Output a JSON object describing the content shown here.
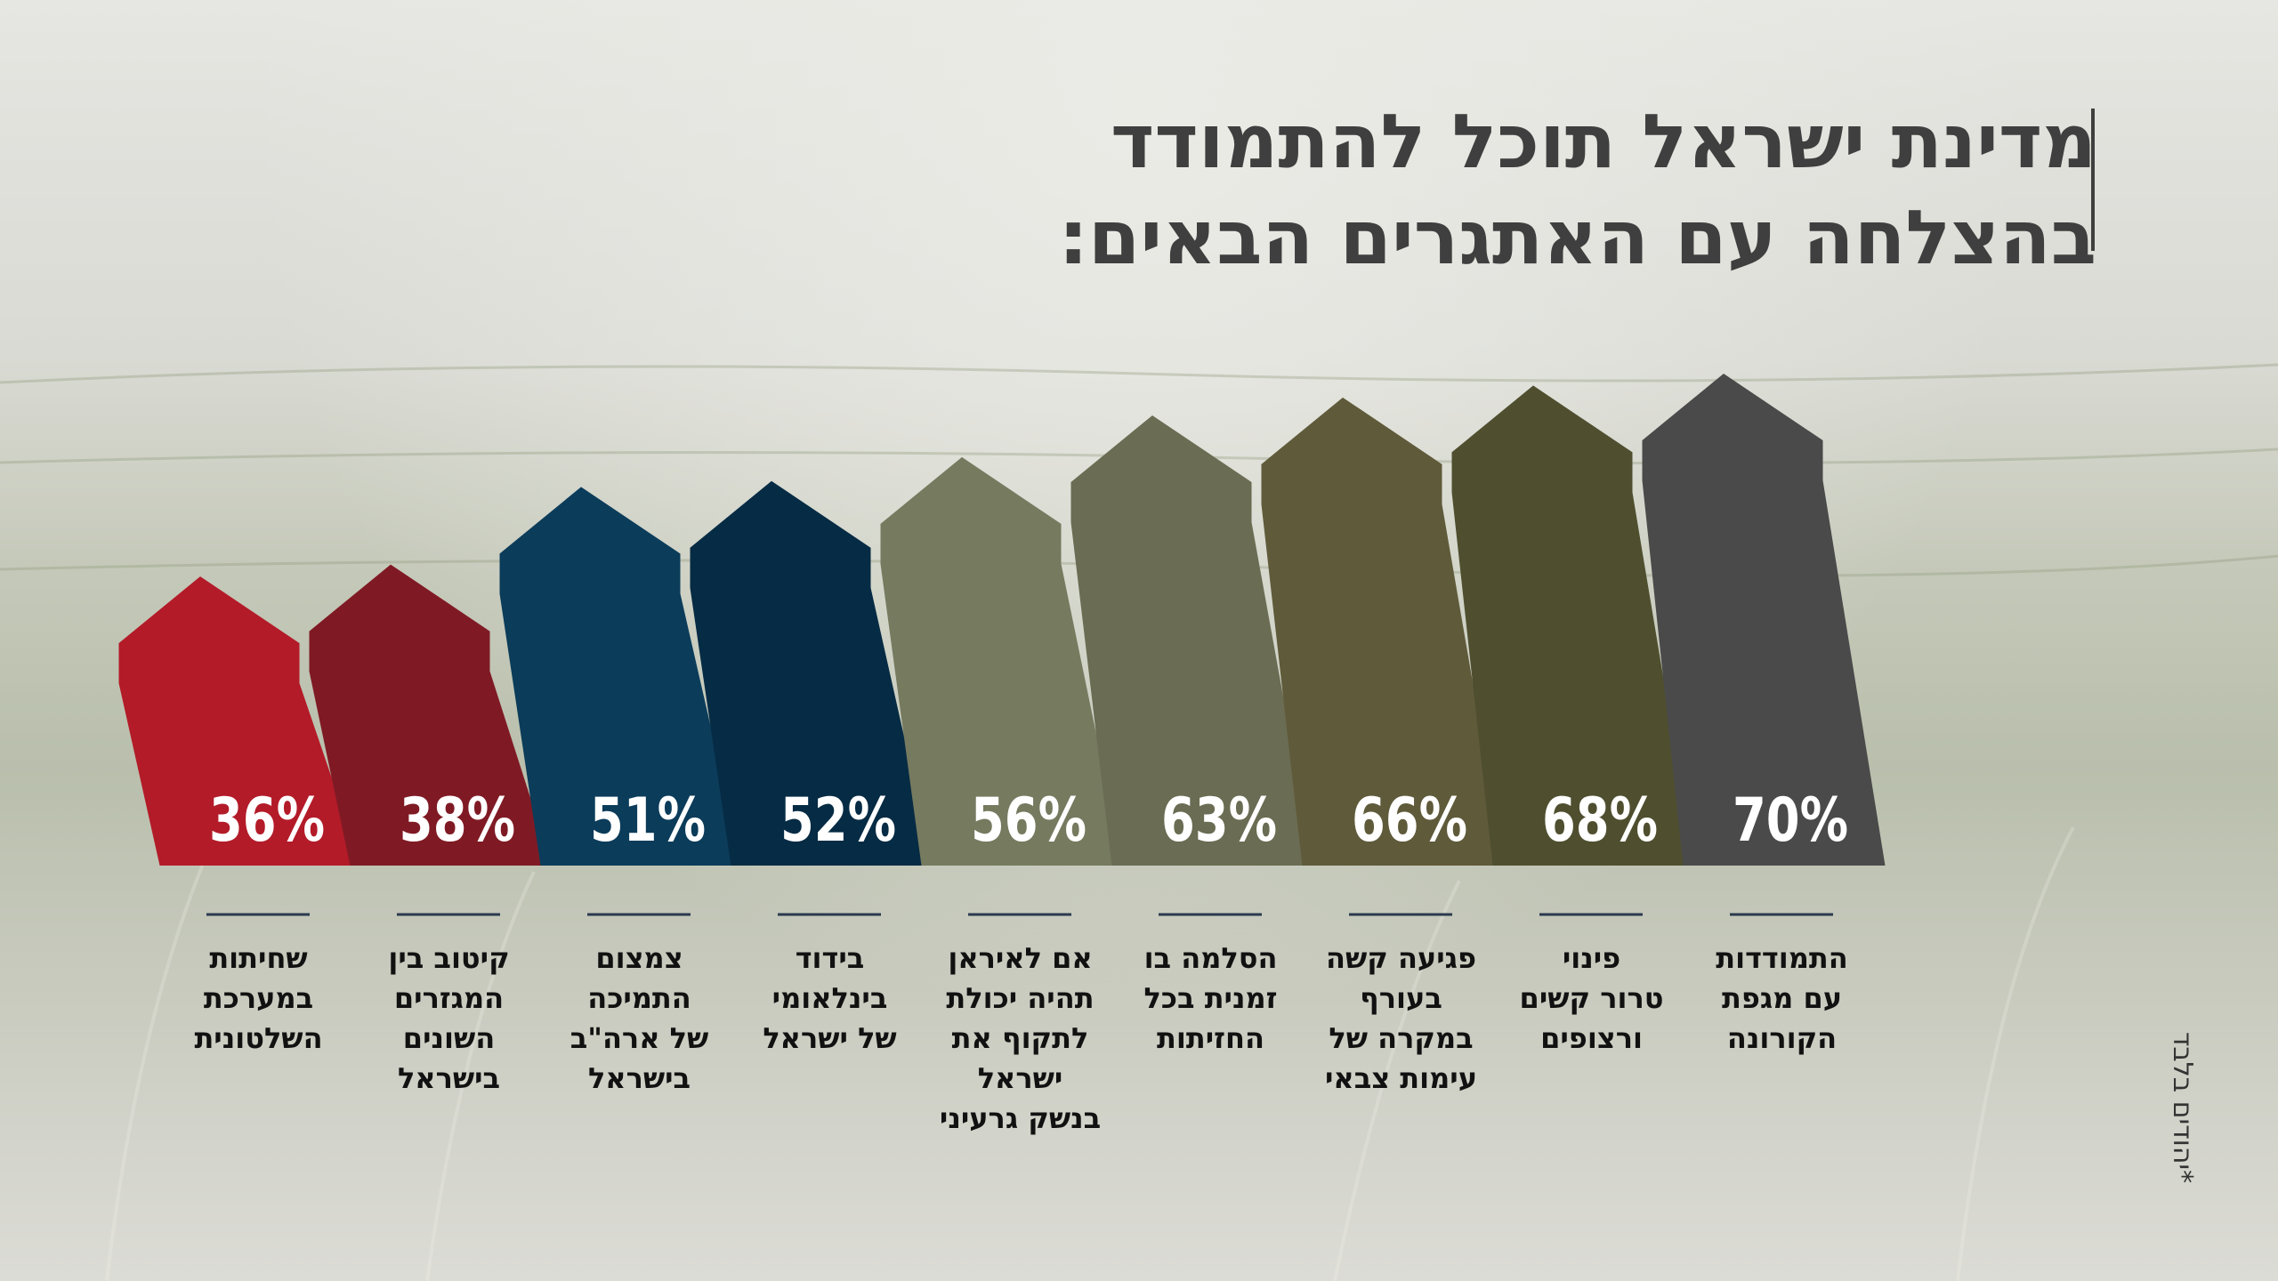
{
  "title": [
    "מדינת ישראל תוכל להתמודד",
    "בהצלחה עם האתגרים הבאים:"
  ],
  "footnote": "*יהודים בלבד",
  "colors": [
    "#b31b29",
    "#7f1a24",
    "#0b3c5a",
    "#062b44",
    "#767a5f",
    "#6a6c53",
    "#5f5a3a",
    "#4f4f30",
    "#4a4a4a"
  ],
  "chart_data": {
    "type": "bar",
    "unit": "%",
    "categories": [
      [
        "שחיתות",
        "במערכת",
        "השלטונית"
      ],
      [
        "קיטוב בין",
        "המגזרים",
        "השונים",
        "בישראל"
      ],
      [
        "צמצום",
        "התמיכה",
        "של ארה\"ב",
        "בישראל"
      ],
      [
        "בידוד",
        "בינלאומי",
        "של ישראל"
      ],
      [
        "אם לאיראן",
        "תהיה יכולת",
        "לתקוף את",
        "ישראל",
        "בנשק גרעיני"
      ],
      [
        "הסלמה בו",
        "זמנית בכל",
        "החזיתות"
      ],
      [
        "פגיעה קשה",
        "בעורף",
        "במקרה של",
        "עימות צבאי"
      ],
      [
        "פינוי",
        "טרור קשים",
        "ורצופים"
      ],
      [
        "התמודדות",
        "עם מגפת",
        "הקורונה"
      ]
    ],
    "values": [
      36,
      38,
      51,
      52,
      56,
      63,
      66,
      68,
      70
    ],
    "value_labels": [
      "36%",
      "38%",
      "51%",
      "52%",
      "56%",
      "63%",
      "66%",
      "68%",
      "70%"
    ]
  }
}
